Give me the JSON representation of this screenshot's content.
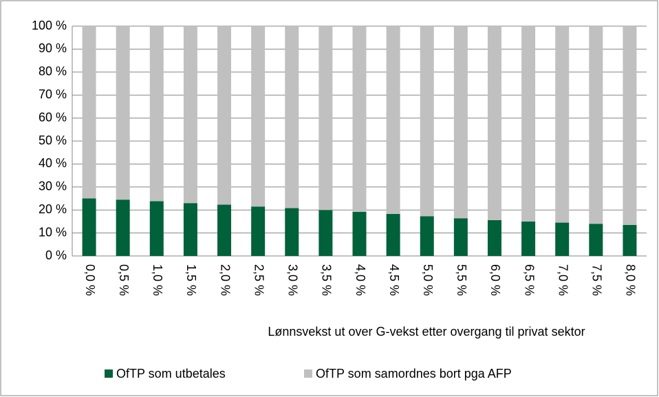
{
  "chart_data": {
    "type": "stacked_bar",
    "x_label": "Lønnsvekst ut over G-vekst etter overgang til privat sektor",
    "categories": [
      "0,0 %",
      "0,5 %",
      "1,0 %",
      "1,5 %",
      "2,0 %",
      "2,5 %",
      "3,0 %",
      "3,5 %",
      "4,0 %",
      "4,5 %",
      "5,0 %",
      "5,5 %",
      "6,0 %",
      "6,5 %",
      "7,0 %",
      "7,5 %",
      "8,0 %"
    ],
    "series": [
      {
        "name": "OfTP som utbetales",
        "color": "#00613a",
        "values": [
          25,
          24.5,
          23.8,
          23,
          22.3,
          21.5,
          20.8,
          20,
          19.2,
          18.3,
          17.3,
          16.4,
          15.6,
          15,
          14.5,
          14,
          13.5
        ]
      },
      {
        "name": "OfTP som samordnes bort pga AFP",
        "color": "#c0c0c0",
        "values": [
          75,
          75.5,
          76.2,
          77,
          77.7,
          78.5,
          79.2,
          80,
          80.8,
          81.7,
          82.7,
          83.6,
          84.4,
          85,
          85.5,
          86,
          86.5
        ]
      }
    ],
    "ylim": [
      0,
      100
    ],
    "yticks": [
      {
        "value": 0,
        "label": "0 %"
      },
      {
        "value": 10,
        "label": "10 %"
      },
      {
        "value": 20,
        "label": "20 %"
      },
      {
        "value": 30,
        "label": "30 %"
      },
      {
        "value": 40,
        "label": "40 %"
      },
      {
        "value": 50,
        "label": "50 %"
      },
      {
        "value": 60,
        "label": "60 %"
      },
      {
        "value": 70,
        "label": "70 %"
      },
      {
        "value": 80,
        "label": "80 %"
      },
      {
        "value": 90,
        "label": "90 %"
      },
      {
        "value": 100,
        "label": "100 %"
      }
    ],
    "grid": true
  }
}
